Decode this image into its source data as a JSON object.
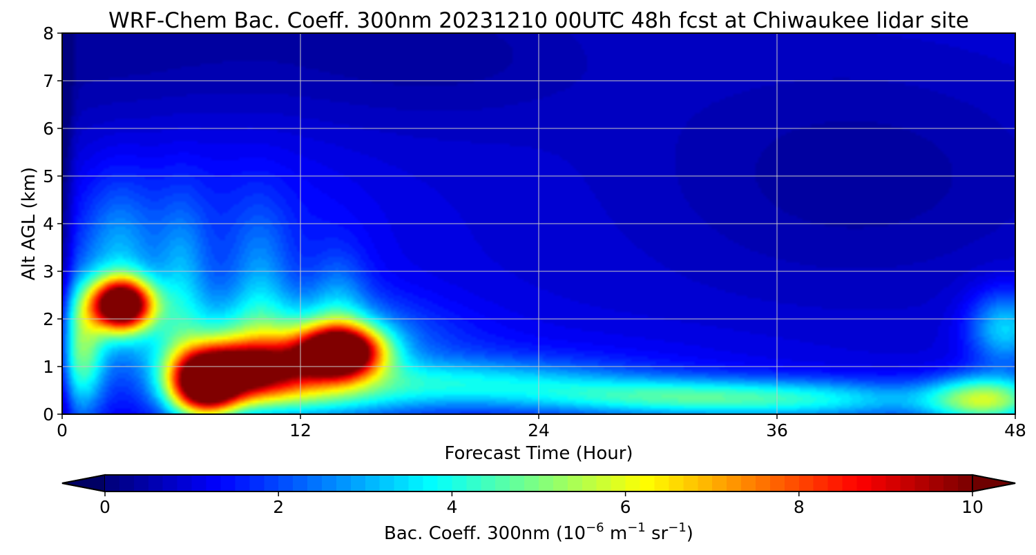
{
  "chart_data": {
    "type": "heatmap",
    "title": "WRF-Chem Bac. Coeff. 300nm  20231210 00UTC 48h fcst at Chiwaukee lidar site",
    "xlabel": "Forecast Time (Hour)",
    "ylabel": "Alt AGL (km)",
    "xlim": [
      0,
      48
    ],
    "ylim": [
      0,
      8
    ],
    "x_ticks": [
      "0",
      "12",
      "24",
      "36",
      "48"
    ],
    "y_ticks": [
      "0",
      "1",
      "2",
      "3",
      "4",
      "5",
      "6",
      "7",
      "8"
    ],
    "grid": true,
    "colormap": "jet",
    "colorbar": {
      "label_main": "Bac. Coeff. 300nm  (10",
      "label_exp1": "−6",
      "label_mid": " m",
      "label_exp2": "−1",
      "label_mid2": " sr",
      "label_exp3": "−1",
      "label_end": ")",
      "range": [
        0,
        10
      ],
      "ticks": [
        "0",
        "2",
        "4",
        "6",
        "8",
        "10"
      ],
      "extend": "both"
    },
    "background_value": 1.0,
    "features": [
      {
        "x": 3.0,
        "y": 2.3,
        "sx": 1.1,
        "sy": 0.38,
        "v": 10.5
      },
      {
        "x": 2.8,
        "y": 3.1,
        "sx": 1.3,
        "sy": 1.2,
        "v": 1.8
      },
      {
        "x": 1.0,
        "y": 1.3,
        "sx": 0.8,
        "sy": 0.9,
        "v": 3.5
      },
      {
        "x": 7.2,
        "y": 0.6,
        "sx": 1.2,
        "sy": 0.45,
        "v": 9.0
      },
      {
        "x": 9.5,
        "y": 0.95,
        "sx": 2.3,
        "sy": 0.42,
        "v": 8.0
      },
      {
        "x": 14.0,
        "y": 1.3,
        "sx": 1.5,
        "sy": 0.38,
        "v": 10.5
      },
      {
        "x": 11.0,
        "y": 1.6,
        "sx": 5.0,
        "sy": 0.65,
        "v": 2.5
      },
      {
        "x": 6.0,
        "y": 2.6,
        "sx": 0.9,
        "sy": 1.3,
        "v": 1.5
      },
      {
        "x": 10.0,
        "y": 2.6,
        "sx": 1.0,
        "sy": 1.2,
        "v": 1.2
      },
      {
        "x": 14.0,
        "y": 2.3,
        "sx": 1.0,
        "sy": 0.8,
        "v": 1.2
      },
      {
        "x": 8.0,
        "y": 3.5,
        "sx": 5.0,
        "sy": 1.8,
        "v": 0.8
      },
      {
        "x": 12.0,
        "y": 0.3,
        "sx": 4.0,
        "sy": 0.35,
        "v": 2.0
      },
      {
        "x": 20.0,
        "y": 0.65,
        "sx": 6.0,
        "sy": 0.35,
        "v": 2.3
      },
      {
        "x": 30.0,
        "y": 0.35,
        "sx": 5.0,
        "sy": 0.28,
        "v": 2.6
      },
      {
        "x": 38.0,
        "y": 0.3,
        "sx": 5.0,
        "sy": 0.3,
        "v": 2.4
      },
      {
        "x": 46.5,
        "y": 0.3,
        "sx": 2.0,
        "sy": 0.35,
        "v": 4.5
      },
      {
        "x": 47.5,
        "y": 1.8,
        "sx": 1.3,
        "sy": 0.55,
        "v": 2.6
      },
      {
        "x": 22.0,
        "y": 1.0,
        "sx": 10.0,
        "sy": 0.6,
        "v": 0.4
      },
      {
        "x": 40.0,
        "y": 5.0,
        "sx": 8.0,
        "sy": 1.8,
        "v": -0.6
      },
      {
        "x": 3.0,
        "y": 7.5,
        "sx": 14.0,
        "sy": 1.4,
        "v": -0.6
      },
      {
        "x": 20.0,
        "y": 7.6,
        "sx": 5.0,
        "sy": 0.9,
        "v": -0.3
      },
      {
        "x": 0.0,
        "y": 4.0,
        "sx": 0.35,
        "sy": 6.0,
        "v": -1.0
      }
    ]
  }
}
